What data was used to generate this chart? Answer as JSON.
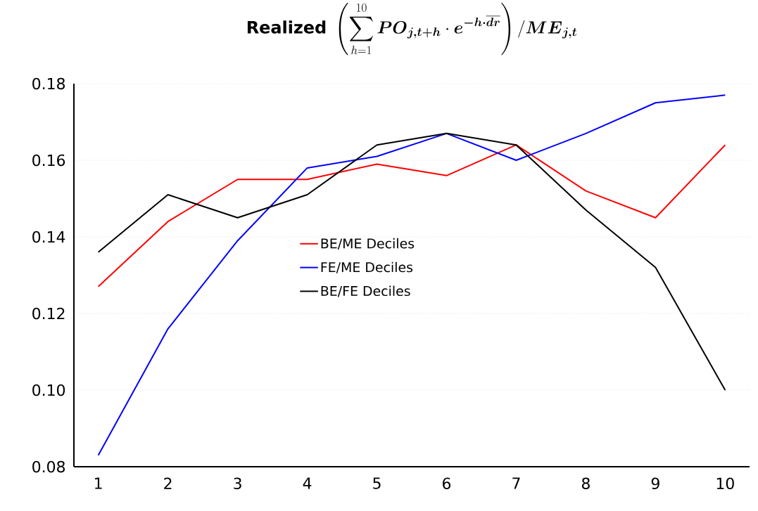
{
  "chart_data": {
    "type": "line",
    "title": "\\mathbf{Realized}\\ \\left(\\sum_{h=1}^{10} \\boldsymbol{PO}_{\\boldsymbol{j,t+h}}\\cdot \\boldsymbol{e}^{\\boldsymbol{-h\\cdot\\overline{dr}}}\\right)/\\boldsymbol{ME}_{\\boldsymbol{j,t}}",
    "categories": [
      "1",
      "2",
      "3",
      "4",
      "5",
      "6",
      "7",
      "8",
      "9",
      "10"
    ],
    "series": [
      {
        "name": "BE/ME Deciles",
        "color": "#ff0000",
        "values": [
          0.127,
          0.144,
          0.155,
          0.155,
          0.159,
          0.156,
          0.164,
          0.152,
          0.145,
          0.164
        ]
      },
      {
        "name": "FE/ME Deciles",
        "color": "#0000ff",
        "values": [
          0.083,
          0.116,
          0.139,
          0.158,
          0.161,
          0.167,
          0.16,
          0.167,
          0.175,
          0.177
        ]
      },
      {
        "name": "BE/FE Deciles",
        "color": "#000000",
        "values": [
          0.136,
          0.151,
          0.145,
          0.151,
          0.164,
          0.167,
          0.164,
          0.147,
          0.132,
          0.1
        ]
      }
    ],
    "ylim": [
      0.08,
      0.18
    ],
    "yticks": [
      0.08,
      {
        "value": 0.1,
        "label": "0.10"
      },
      0.12,
      0.14,
      0.16,
      0.18
    ],
    "grid": "y",
    "legend": "center",
    "marker": "none",
    "line_style": "solid"
  }
}
